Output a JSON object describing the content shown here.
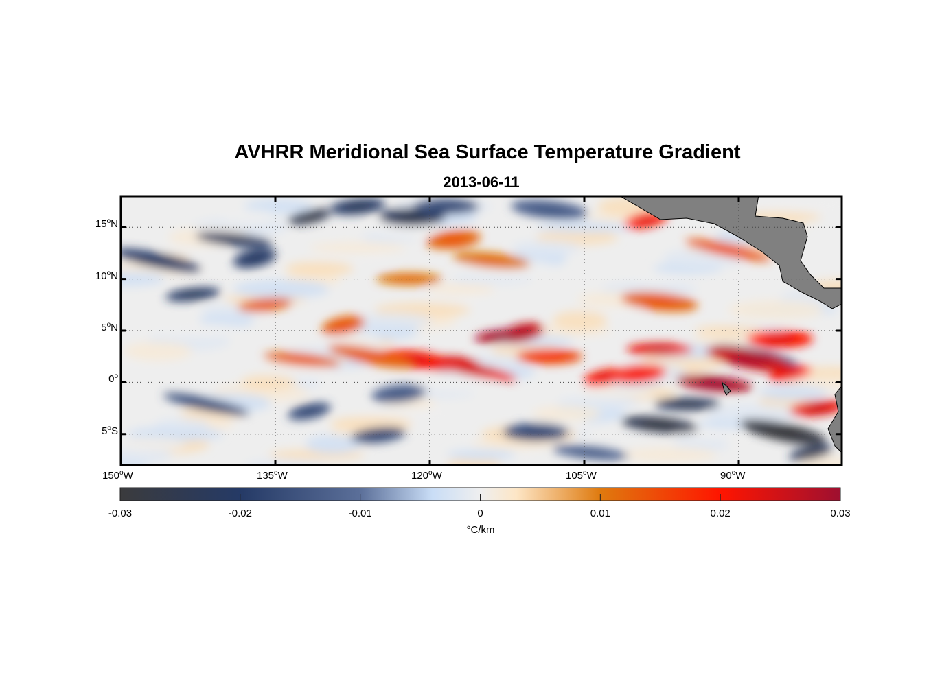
{
  "chart_data": {
    "type": "heatmap",
    "title": "AVHRR Meridional Sea Surface Temperature Gradient",
    "subtitle": "2013-06-11",
    "lon_range": [
      -150,
      -80
    ],
    "lat_range": [
      -8,
      18
    ],
    "grid": true,
    "x_ticks": [
      {
        "value": -150,
        "num": "150",
        "sfx": "W"
      },
      {
        "value": -135,
        "num": "135",
        "sfx": "W"
      },
      {
        "value": -120,
        "num": "120",
        "sfx": "W"
      },
      {
        "value": -105,
        "num": "105",
        "sfx": "W"
      },
      {
        "value": -90,
        "num": "90",
        "sfx": "W"
      }
    ],
    "y_ticks": [
      {
        "value": 15,
        "num": "15",
        "sfx": "N"
      },
      {
        "value": 10,
        "num": "10",
        "sfx": "N"
      },
      {
        "value": 5,
        "num": "5",
        "sfx": "N"
      },
      {
        "value": 0,
        "num": "0",
        "sfx": ""
      },
      {
        "value": -5,
        "num": "5",
        "sfx": "S"
      }
    ],
    "colorbar": {
      "range": [
        -0.03,
        0.03
      ],
      "ticks": [
        {
          "value": -0.03,
          "label": "-0.03"
        },
        {
          "value": -0.02,
          "label": "-0.02"
        },
        {
          "value": -0.01,
          "label": "-0.01"
        },
        {
          "value": 0,
          "label": "0"
        },
        {
          "value": 0.01,
          "label": "0.01"
        },
        {
          "value": 0.02,
          "label": "0.02"
        },
        {
          "value": 0.03,
          "label": "0.03"
        }
      ],
      "label": "°C/km",
      "stops": [
        {
          "v": -0.03,
          "c": "#3b3b3d"
        },
        {
          "v": -0.02,
          "c": "#253a66"
        },
        {
          "v": -0.01,
          "c": "#5b6f99"
        },
        {
          "v": -0.004,
          "c": "#c9ddf6"
        },
        {
          "v": 0,
          "c": "#efefef"
        },
        {
          "v": 0.003,
          "c": "#fde6c6"
        },
        {
          "v": 0.01,
          "c": "#df7a0e"
        },
        {
          "v": 0.02,
          "c": "#ff1500"
        },
        {
          "v": 0.03,
          "c": "#9e1030"
        }
      ]
    },
    "land_color": "#808080",
    "features": [
      {
        "lon": -131.7,
        "lat": 16,
        "value": -0.025
      },
      {
        "lon": -127,
        "lat": 17,
        "value": -0.02
      },
      {
        "lon": -121.7,
        "lat": 16,
        "value": -0.022
      },
      {
        "lon": -139,
        "lat": 13.8,
        "value": -0.02
      },
      {
        "lon": -146.4,
        "lat": 11.8,
        "value": -0.018
      },
      {
        "lon": -137,
        "lat": 12,
        "value": -0.018
      },
      {
        "lon": -143,
        "lat": 8.5,
        "value": -0.02
      },
      {
        "lon": -118.4,
        "lat": 17,
        "value": -0.015
      },
      {
        "lon": -108.4,
        "lat": 16.7,
        "value": -0.012
      },
      {
        "lon": -141.7,
        "lat": -2.1,
        "value": -0.015
      },
      {
        "lon": -131.7,
        "lat": -2.8,
        "value": -0.015
      },
      {
        "lon": -123,
        "lat": -1.1,
        "value": -0.012
      },
      {
        "lon": -95,
        "lat": -2.1,
        "value": -0.022
      },
      {
        "lon": -97.7,
        "lat": -4.1,
        "value": -0.025
      },
      {
        "lon": -85.7,
        "lat": -4.8,
        "value": -0.028
      },
      {
        "lon": -83,
        "lat": -6.8,
        "value": -0.022
      },
      {
        "lon": -125,
        "lat": -5.1,
        "value": -0.015
      },
      {
        "lon": -109.7,
        "lat": -4.8,
        "value": -0.015
      },
      {
        "lon": -104.4,
        "lat": -6.8,
        "value": -0.012
      },
      {
        "lon": -88.4,
        "lat": 2.5,
        "value": -0.015
      },
      {
        "lon": -111,
        "lat": 4.8,
        "value": 0.025
      },
      {
        "lon": -113,
        "lat": 4.5,
        "value": 0.028
      },
      {
        "lon": -118.4,
        "lat": 1.8,
        "value": 0.025
      },
      {
        "lon": -121.7,
        "lat": 2.2,
        "value": 0.02
      },
      {
        "lon": -115.7,
        "lat": 1.2,
        "value": 0.022
      },
      {
        "lon": -103,
        "lat": 0.5,
        "value": 0.02
      },
      {
        "lon": -99.7,
        "lat": 0.8,
        "value": 0.018
      },
      {
        "lon": -97.7,
        "lat": 3.2,
        "value": 0.022
      },
      {
        "lon": -92.4,
        "lat": -0.1,
        "value": 0.028
      },
      {
        "lon": -89,
        "lat": 2.2,
        "value": 0.025
      },
      {
        "lon": -85,
        "lat": 0.8,
        "value": 0.02
      },
      {
        "lon": -82.4,
        "lat": -2.5,
        "value": 0.022
      },
      {
        "lon": -86,
        "lat": 4.2,
        "value": 0.02
      },
      {
        "lon": -132.4,
        "lat": 2.2,
        "value": 0.012
      },
      {
        "lon": -125.7,
        "lat": 2.5,
        "value": 0.012
      },
      {
        "lon": -128.4,
        "lat": 5.5,
        "value": 0.012
      },
      {
        "lon": -136,
        "lat": 7.5,
        "value": 0.012
      },
      {
        "lon": -108.4,
        "lat": 2.5,
        "value": 0.015
      },
      {
        "lon": -97.7,
        "lat": 7.8,
        "value": 0.012
      },
      {
        "lon": -91,
        "lat": 12.8,
        "value": 0.013
      },
      {
        "lon": -99,
        "lat": 15.7,
        "value": 0.02
      },
      {
        "lon": -117.7,
        "lat": 13.8,
        "value": 0.012
      },
      {
        "lon": -122,
        "lat": 10,
        "value": 0.01
      },
      {
        "lon": -114,
        "lat": 11.8,
        "value": 0.01
      }
    ]
  }
}
